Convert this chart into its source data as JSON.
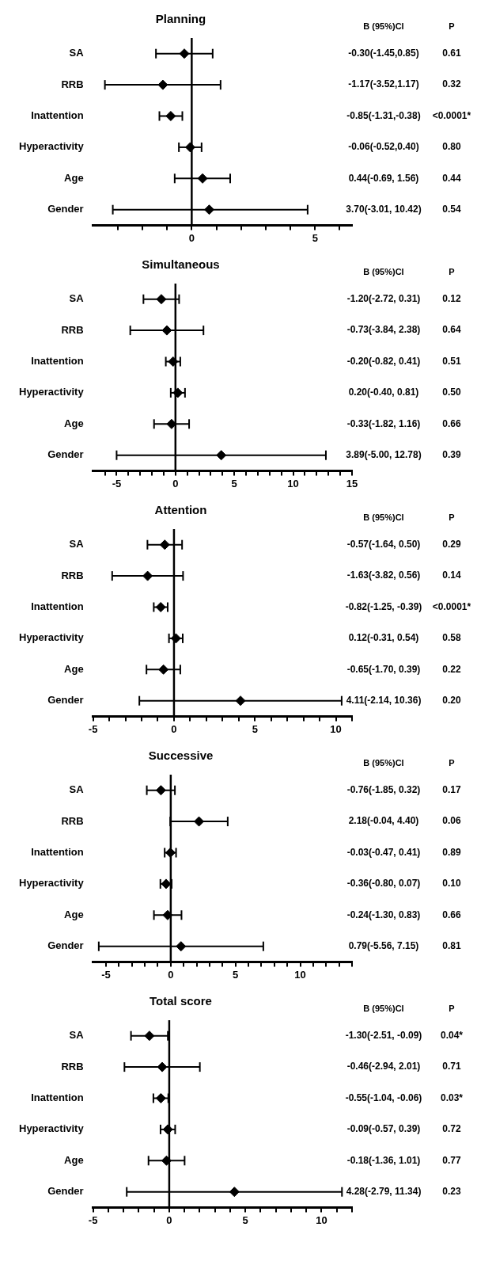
{
  "chart_data": [
    {
      "type": "scatter",
      "orientation": "horizontal",
      "title": "Planning",
      "categories": [
        "SA",
        "RRB",
        "Inattention",
        "Hyperactivity",
        "Age",
        "Gender"
      ],
      "color": "#000000",
      "marker": "diamond",
      "values": [
        -0.3,
        -1.17,
        -0.85,
        -0.06,
        0.44,
        0.71
      ],
      "errors": [
        [
          -1.45,
          0.85
        ],
        [
          -3.52,
          1.17
        ],
        [
          -1.31,
          -0.38
        ],
        [
          -0.52,
          0.4
        ],
        [
          -0.69,
          1.56
        ],
        [
          -3.2,
          4.7
        ]
      ],
      "xlim": [
        -4,
        6.5
      ],
      "xticks": [
        {
          "value": -3,
          "label": null
        },
        {
          "value": -2,
          "label": null
        },
        {
          "value": -1,
          "label": null
        },
        0,
        {
          "value": 1,
          "label": null
        },
        {
          "value": 2,
          "label": null
        },
        {
          "value": 3,
          "label": null
        },
        {
          "value": 4,
          "label": null
        },
        5,
        {
          "value": 6,
          "label": null
        }
      ],
      "ref_lines": [
        {
          "axis": "x",
          "value": 0
        }
      ],
      "grid": false,
      "legend": false,
      "annotations": [
        "B (95%)CI",
        "P",
        "-0.30(-1.45,0.85)",
        "0.61",
        "-1.17(-3.52,1.17)",
        "0.32",
        "-0.85(-1.31,-0.38)",
        "<0.0001*",
        "-0.06(-0.52,0.40)",
        "0.80",
        "0.44(-0.69, 1.56)",
        "0.44",
        "3.70(-3.01, 10.42)",
        "0.54"
      ]
    },
    {
      "type": "scatter",
      "orientation": "horizontal",
      "title": "Simultaneous",
      "categories": [
        "SA",
        "RRB",
        "Inattention",
        "Hyperactivity",
        "Age",
        "Gender"
      ],
      "color": "#000000",
      "marker": "diamond",
      "values": [
        -1.2,
        -0.73,
        -0.2,
        0.2,
        -0.33,
        3.89
      ],
      "errors": [
        [
          -2.72,
          0.31
        ],
        [
          -3.84,
          2.38
        ],
        [
          -0.82,
          0.41
        ],
        [
          -0.4,
          0.81
        ],
        [
          -1.82,
          1.16
        ],
        [
          -5.0,
          12.78
        ]
      ],
      "xlim": [
        -7,
        15
      ],
      "xticks": [
        {
          "value": -6,
          "label": null
        },
        -5,
        {
          "value": -4,
          "label": null
        },
        {
          "value": -3,
          "label": null
        },
        {
          "value": -2,
          "label": null
        },
        {
          "value": -1,
          "label": null
        },
        0,
        {
          "value": 1,
          "label": null
        },
        {
          "value": 2,
          "label": null
        },
        {
          "value": 3,
          "label": null
        },
        {
          "value": 4,
          "label": null
        },
        5,
        {
          "value": 6,
          "label": null
        },
        {
          "value": 7,
          "label": null
        },
        {
          "value": 8,
          "label": null
        },
        {
          "value": 9,
          "label": null
        },
        10,
        {
          "value": 11,
          "label": null
        },
        {
          "value": 12,
          "label": null
        },
        {
          "value": 13,
          "label": null
        },
        {
          "value": 14,
          "label": null
        },
        15
      ],
      "ref_lines": [
        {
          "axis": "x",
          "value": 0
        }
      ],
      "grid": false,
      "legend": false,
      "annotations": [
        "B (95%)CI",
        "P",
        "-1.20(-2.72, 0.31)",
        "0.12",
        "-0.73(-3.84, 2.38)",
        "0.64",
        "-0.20(-0.82, 0.41)",
        "0.51",
        "0.20(-0.40, 0.81)",
        "0.50",
        "-0.33(-1.82, 1.16)",
        "0.66",
        "3.89(-5.00, 12.78)",
        "0.39"
      ]
    },
    {
      "type": "scatter",
      "orientation": "horizontal",
      "title": "Attention",
      "categories": [
        "SA",
        "RRB",
        "Inattention",
        "Hyperactivity",
        "Age",
        "Gender"
      ],
      "color": "#000000",
      "marker": "diamond",
      "values": [
        -0.57,
        -1.63,
        -0.82,
        0.12,
        -0.65,
        4.11
      ],
      "errors": [
        [
          -1.64,
          0.5
        ],
        [
          -3.82,
          0.56
        ],
        [
          -1.25,
          -0.39
        ],
        [
          -0.31,
          0.54
        ],
        [
          -1.7,
          0.39
        ],
        [
          -2.14,
          10.36
        ]
      ],
      "xlim": [
        -5,
        11
      ],
      "xticks": [
        -5,
        {
          "value": -4,
          "label": null
        },
        {
          "value": -3,
          "label": null
        },
        {
          "value": -2,
          "label": null
        },
        {
          "value": -1,
          "label": null
        },
        0,
        {
          "value": 1,
          "label": null
        },
        {
          "value": 2,
          "label": null
        },
        {
          "value": 3,
          "label": null
        },
        {
          "value": 4,
          "label": null
        },
        5,
        {
          "value": 6,
          "label": null
        },
        {
          "value": 7,
          "label": null
        },
        {
          "value": 8,
          "label": null
        },
        {
          "value": 9,
          "label": null
        },
        10,
        {
          "value": 11,
          "label": null
        }
      ],
      "ref_lines": [
        {
          "axis": "x",
          "value": 0
        }
      ],
      "grid": false,
      "legend": false,
      "annotations": [
        "B (95%)CI",
        "P",
        "-0.57(-1.64, 0.50)",
        "0.29",
        "-1.63(-3.82, 0.56)",
        "0.14",
        "-0.82(-1.25, -0.39)",
        "<0.0001*",
        "0.12(-0.31, 0.54)",
        "0.58",
        "-0.65(-1.70, 0.39)",
        "0.22",
        "4.11(-2.14, 10.36)",
        "0.20"
      ]
    },
    {
      "type": "scatter",
      "orientation": "horizontal",
      "title": "Successive",
      "categories": [
        "SA",
        "RRB",
        "Inattention",
        "Hyperactivity",
        "Age",
        "Gender"
      ],
      "color": "#000000",
      "marker": "diamond",
      "values": [
        -0.76,
        2.18,
        -0.03,
        -0.36,
        -0.24,
        0.79
      ],
      "errors": [
        [
          -1.85,
          0.32
        ],
        [
          -0.04,
          4.4
        ],
        [
          -0.47,
          0.41
        ],
        [
          -0.8,
          0.07
        ],
        [
          -1.3,
          0.83
        ],
        [
          -5.56,
          7.15
        ]
      ],
      "xlim": [
        -6,
        14
      ],
      "xticks": [
        -5,
        {
          "value": -4,
          "label": null
        },
        {
          "value": -3,
          "label": null
        },
        {
          "value": -2,
          "label": null
        },
        {
          "value": -1,
          "label": null
        },
        0,
        {
          "value": 1,
          "label": null
        },
        {
          "value": 2,
          "label": null
        },
        {
          "value": 3,
          "label": null
        },
        {
          "value": 4,
          "label": null
        },
        5,
        {
          "value": 6,
          "label": null
        },
        {
          "value": 7,
          "label": null
        },
        {
          "value": 8,
          "label": null
        },
        {
          "value": 9,
          "label": null
        },
        10,
        {
          "value": 11,
          "label": null
        },
        {
          "value": 12,
          "label": null
        },
        {
          "value": 13,
          "label": null
        },
        {
          "value": 14,
          "label": null
        }
      ],
      "ref_lines": [
        {
          "axis": "x",
          "value": 0
        }
      ],
      "grid": false,
      "legend": false,
      "annotations": [
        "B (95%)CI",
        "P",
        "-0.76(-1.85, 0.32)",
        "0.17",
        "2.18(-0.04, 4.40)",
        "0.06",
        "-0.03(-0.47, 0.41)",
        "0.89",
        "-0.36(-0.80, 0.07)",
        "0.10",
        "-0.24(-1.30, 0.83)",
        "0.66",
        "0.79(-5.56, 7.15)",
        "0.81"
      ]
    },
    {
      "type": "scatter",
      "orientation": "horizontal",
      "title": "Total score",
      "categories": [
        "SA",
        "RRB",
        "Inattention",
        "Hyperactivity",
        "Age",
        "Gender"
      ],
      "color": "#000000",
      "marker": "diamond",
      "values": [
        -1.3,
        -0.46,
        -0.55,
        -0.09,
        -0.18,
        4.28
      ],
      "errors": [
        [
          -2.51,
          -0.09
        ],
        [
          -2.94,
          2.01
        ],
        [
          -1.04,
          -0.06
        ],
        [
          -0.57,
          0.39
        ],
        [
          -1.36,
          1.01
        ],
        [
          -2.79,
          11.34
        ]
      ],
      "xlim": [
        -5,
        12
      ],
      "xticks": [
        -5,
        {
          "value": -4,
          "label": null
        },
        {
          "value": -3,
          "label": null
        },
        {
          "value": -2,
          "label": null
        },
        {
          "value": -1,
          "label": null
        },
        0,
        {
          "value": 1,
          "label": null
        },
        {
          "value": 2,
          "label": null
        },
        {
          "value": 3,
          "label": null
        },
        {
          "value": 4,
          "label": null
        },
        5,
        {
          "value": 6,
          "label": null
        },
        {
          "value": 7,
          "label": null
        },
        {
          "value": 8,
          "label": null
        },
        {
          "value": 9,
          "label": null
        },
        10,
        {
          "value": 11,
          "label": null
        },
        {
          "value": 12,
          "label": null
        }
      ],
      "ref_lines": [
        {
          "axis": "x",
          "value": 0
        }
      ],
      "grid": false,
      "legend": false,
      "annotations": [
        "B (95%)CI",
        "P",
        "-1.30(-2.51, -0.09)",
        "0.04*",
        "-0.46(-2.94, 2.01)",
        "0.71",
        "-0.55(-1.04, -0.06)",
        "0.03*",
        "-0.09(-0.57, 0.39)",
        "0.72",
        "-0.18(-1.36, 1.01)",
        "0.77",
        "4.28(-2.79, 11.34)",
        "0.23"
      ]
    }
  ]
}
